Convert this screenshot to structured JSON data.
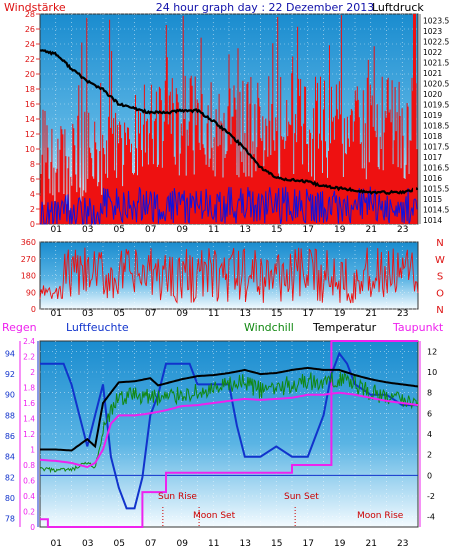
{
  "header": {
    "left": "Windstärke",
    "center": "24 hour graph day : 22 Dezember 2013",
    "right": "Luftdruck"
  },
  "hour_labels": [
    "01",
    "03",
    "05",
    "07",
    "09",
    "11",
    "13",
    "15",
    "17",
    "19",
    "21",
    "23"
  ],
  "legend": {
    "regen": "Regen",
    "luftfeuchte": "Luftfeuchte",
    "windchill": "Windchill",
    "temperatur": "Temperatur",
    "taupunkt": "Taupunkt"
  },
  "annotations": [
    "Sun Rise",
    "Moon Set",
    "Sun Set",
    "Moon Rise"
  ],
  "colors": {
    "wind": "#ee1111",
    "gust_low": "#1111dd",
    "pressure": "#000000",
    "direction": "#ee1111",
    "humidity": "#1133cc",
    "windchill": "#118811",
    "temperature": "#000000",
    "dewpoint": "#ee22ee",
    "rain": "#ee22ee",
    "header_red": "#dd1111",
    "header_blue": "#1111aa",
    "sun_marker": "#cc0000"
  },
  "chart_data": [
    {
      "type": "line",
      "title": "24 hour graph day : 22 Dezember 2013",
      "left_axis": {
        "label": "Windstärke",
        "ticks": [
          0,
          2,
          4,
          6,
          8,
          10,
          12,
          14,
          16,
          18,
          20,
          22,
          24,
          26,
          28
        ],
        "range": [
          0,
          28
        ]
      },
      "right_axis": {
        "label": "Luftdruck",
        "ticks": [
          1014,
          1014.5,
          1015,
          1015.5,
          1016,
          1016.5,
          1017,
          1017.5,
          1018,
          1018.5,
          1019,
          1019.5,
          1020,
          1020.5,
          1021,
          1021.5,
          1022,
          1022.5,
          1023,
          1023.5
        ],
        "range": [
          1013.8,
          1023.8
        ]
      },
      "x": {
        "label": "hour",
        "range": [
          0,
          24
        ]
      },
      "series": [
        {
          "name": "Luftdruck",
          "axis": "right",
          "points": [
            [
              0,
              1022.1
            ],
            [
              1,
              1021.9
            ],
            [
              2,
              1021.2
            ],
            [
              3,
              1020.6
            ],
            [
              4,
              1020.2
            ],
            [
              5,
              1019.5
            ],
            [
              6,
              1019.3
            ],
            [
              7,
              1019.1
            ],
            [
              8,
              1019.1
            ],
            [
              9,
              1019.2
            ],
            [
              10,
              1019.2
            ],
            [
              11,
              1018.7
            ],
            [
              12,
              1018.1
            ],
            [
              13,
              1017.4
            ],
            [
              14,
              1016.5
            ],
            [
              15,
              1016.0
            ],
            [
              16,
              1015.9
            ],
            [
              17,
              1015.8
            ],
            [
              18,
              1015.6
            ],
            [
              19,
              1015.5
            ],
            [
              20,
              1015.4
            ],
            [
              21,
              1015.3
            ],
            [
              22,
              1015.3
            ],
            [
              23,
              1015.3
            ],
            [
              24,
              1015.5
            ]
          ]
        }
      ],
      "grid": true
    },
    {
      "type": "line",
      "y_axis": {
        "ticks": [
          0,
          90,
          180,
          270,
          360
        ],
        "range": [
          0,
          360
        ]
      },
      "direction_labels": [
        "N",
        "W",
        "S",
        "O",
        "N"
      ],
      "x": {
        "label": "hour",
        "range": [
          0,
          24
        ]
      },
      "grid": true
    },
    {
      "type": "line",
      "axes": {
        "regen": {
          "label": "Regen",
          "ticks": [
            0,
            0.2,
            0.4,
            0.6,
            0.8,
            1,
            1.2,
            1.4,
            1.6,
            1.8,
            2,
            2.2,
            2.4
          ],
          "range": [
            0,
            2.4
          ]
        },
        "luftfeuchte": {
          "label": "Luftfeuchte",
          "ticks": [
            78,
            80,
            82,
            84,
            86,
            88,
            90,
            92,
            94
          ],
          "range": [
            77.2,
            95.2
          ]
        },
        "temperatur": {
          "label": "Temperatur",
          "ticks": [
            -4,
            -2,
            0,
            2,
            4,
            6,
            8,
            10,
            12
          ],
          "range": [
            -5,
            13
          ]
        }
      },
      "x": {
        "label": "hour",
        "range": [
          0,
          24
        ]
      },
      "series": [
        {
          "name": "Luftfeuchte",
          "axis": "luftfeuchte",
          "points": [
            [
              0,
              93
            ],
            [
              1.5,
              93
            ],
            [
              2,
              91
            ],
            [
              2.5,
              88
            ],
            [
              3,
              85
            ],
            [
              3.5,
              88
            ],
            [
              4,
              91
            ],
            [
              4.5,
              84
            ],
            [
              5,
              81
            ],
            [
              5.5,
              79
            ],
            [
              6,
              79
            ],
            [
              6.5,
              82
            ],
            [
              7,
              88
            ],
            [
              7.5,
              90
            ],
            [
              8,
              93
            ],
            [
              9,
              93
            ],
            [
              9.5,
              93
            ],
            [
              10,
              91
            ],
            [
              11,
              91
            ],
            [
              12,
              91
            ],
            [
              12.5,
              87
            ],
            [
              13,
              84
            ],
            [
              14,
              84
            ],
            [
              15,
              85
            ],
            [
              16,
              84
            ],
            [
              17,
              84
            ],
            [
              17.5,
              86
            ],
            [
              18,
              88
            ],
            [
              18.5,
              92
            ],
            [
              19,
              94
            ],
            [
              19.5,
              93
            ],
            [
              20,
              91
            ],
            [
              21,
              90
            ],
            [
              22,
              90
            ],
            [
              23,
              89
            ],
            [
              24,
              89
            ]
          ]
        },
        {
          "name": "Windchill",
          "axis": "temperatur",
          "points": [
            [
              0,
              0.6
            ],
            [
              1,
              0.5
            ],
            [
              2,
              0.5
            ],
            [
              3,
              1.2
            ],
            [
              3.5,
              0.8
            ],
            [
              4,
              4
            ],
            [
              4.5,
              6
            ],
            [
              5,
              7.5
            ],
            [
              6,
              7.8
            ],
            [
              7,
              7.6
            ],
            [
              8,
              7.5
            ],
            [
              9,
              7.9
            ],
            [
              10,
              8.0
            ],
            [
              11,
              8.2
            ],
            [
              12,
              8.7
            ],
            [
              13,
              9.0
            ],
            [
              14,
              8.2
            ],
            [
              15,
              8.5
            ],
            [
              16,
              8.8
            ],
            [
              17,
              9.2
            ],
            [
              18,
              8.8
            ],
            [
              19,
              9.5
            ],
            [
              20,
              8.8
            ],
            [
              21,
              8.0
            ],
            [
              22,
              7.6
            ],
            [
              23,
              7.2
            ],
            [
              24,
              7.2
            ]
          ]
        },
        {
          "name": "Temperatur",
          "axis": "temperatur",
          "points": [
            [
              0,
              2.5
            ],
            [
              1,
              2.5
            ],
            [
              2,
              2.4
            ],
            [
              3,
              3.5
            ],
            [
              3.5,
              2.8
            ],
            [
              4,
              7
            ],
            [
              5,
              9.0
            ],
            [
              6,
              9.1
            ],
            [
              7,
              9.4
            ],
            [
              7.5,
              8.7
            ],
            [
              8,
              8.9
            ],
            [
              9,
              9.3
            ],
            [
              10,
              9.6
            ],
            [
              11,
              9.7
            ],
            [
              12,
              9.9
            ],
            [
              13,
              10.2
            ],
            [
              14,
              9.8
            ],
            [
              15,
              9.9
            ],
            [
              16,
              10.2
            ],
            [
              17,
              10.4
            ],
            [
              18,
              10.2
            ],
            [
              19,
              10.2
            ],
            [
              20,
              9.7
            ],
            [
              21,
              9.3
            ],
            [
              22,
              9.0
            ],
            [
              23,
              8.8
            ],
            [
              24,
              8.6
            ]
          ]
        },
        {
          "name": "Taupunkt",
          "axis": "temperatur",
          "points": [
            [
              0,
              1.5
            ],
            [
              1,
              1.4
            ],
            [
              2,
              1.2
            ],
            [
              3,
              0.8
            ],
            [
              3.5,
              1.2
            ],
            [
              4,
              2.5
            ],
            [
              4.5,
              5
            ],
            [
              5,
              5.8
            ],
            [
              6,
              5.8
            ],
            [
              7,
              6.0
            ],
            [
              8,
              6.3
            ],
            [
              9,
              6.7
            ],
            [
              10,
              6.8
            ],
            [
              11,
              7.0
            ],
            [
              12,
              7.2
            ],
            [
              13,
              7.4
            ],
            [
              14,
              7.3
            ],
            [
              15,
              7.4
            ],
            [
              16,
              7.5
            ],
            [
              17,
              7.8
            ],
            [
              18,
              7.8
            ],
            [
              19,
              8.0
            ],
            [
              20,
              7.8
            ],
            [
              21,
              7.5
            ],
            [
              22,
              7.2
            ],
            [
              23,
              7.0
            ],
            [
              24,
              6.8
            ]
          ]
        },
        {
          "name": "Regen",
          "axis": "regen",
          "points": [
            [
              0,
              0.1
            ],
            [
              0.5,
              0.1
            ],
            [
              0.5,
              0.0
            ],
            [
              6.5,
              0.0
            ],
            [
              6.5,
              0.45
            ],
            [
              8,
              0.45
            ],
            [
              8,
              0.7
            ],
            [
              16,
              0.7
            ],
            [
              16,
              0.8
            ],
            [
              18.5,
              0.8
            ],
            [
              18.5,
              2.4
            ],
            [
              24,
              2.4
            ]
          ]
        }
      ],
      "grid": true
    }
  ]
}
